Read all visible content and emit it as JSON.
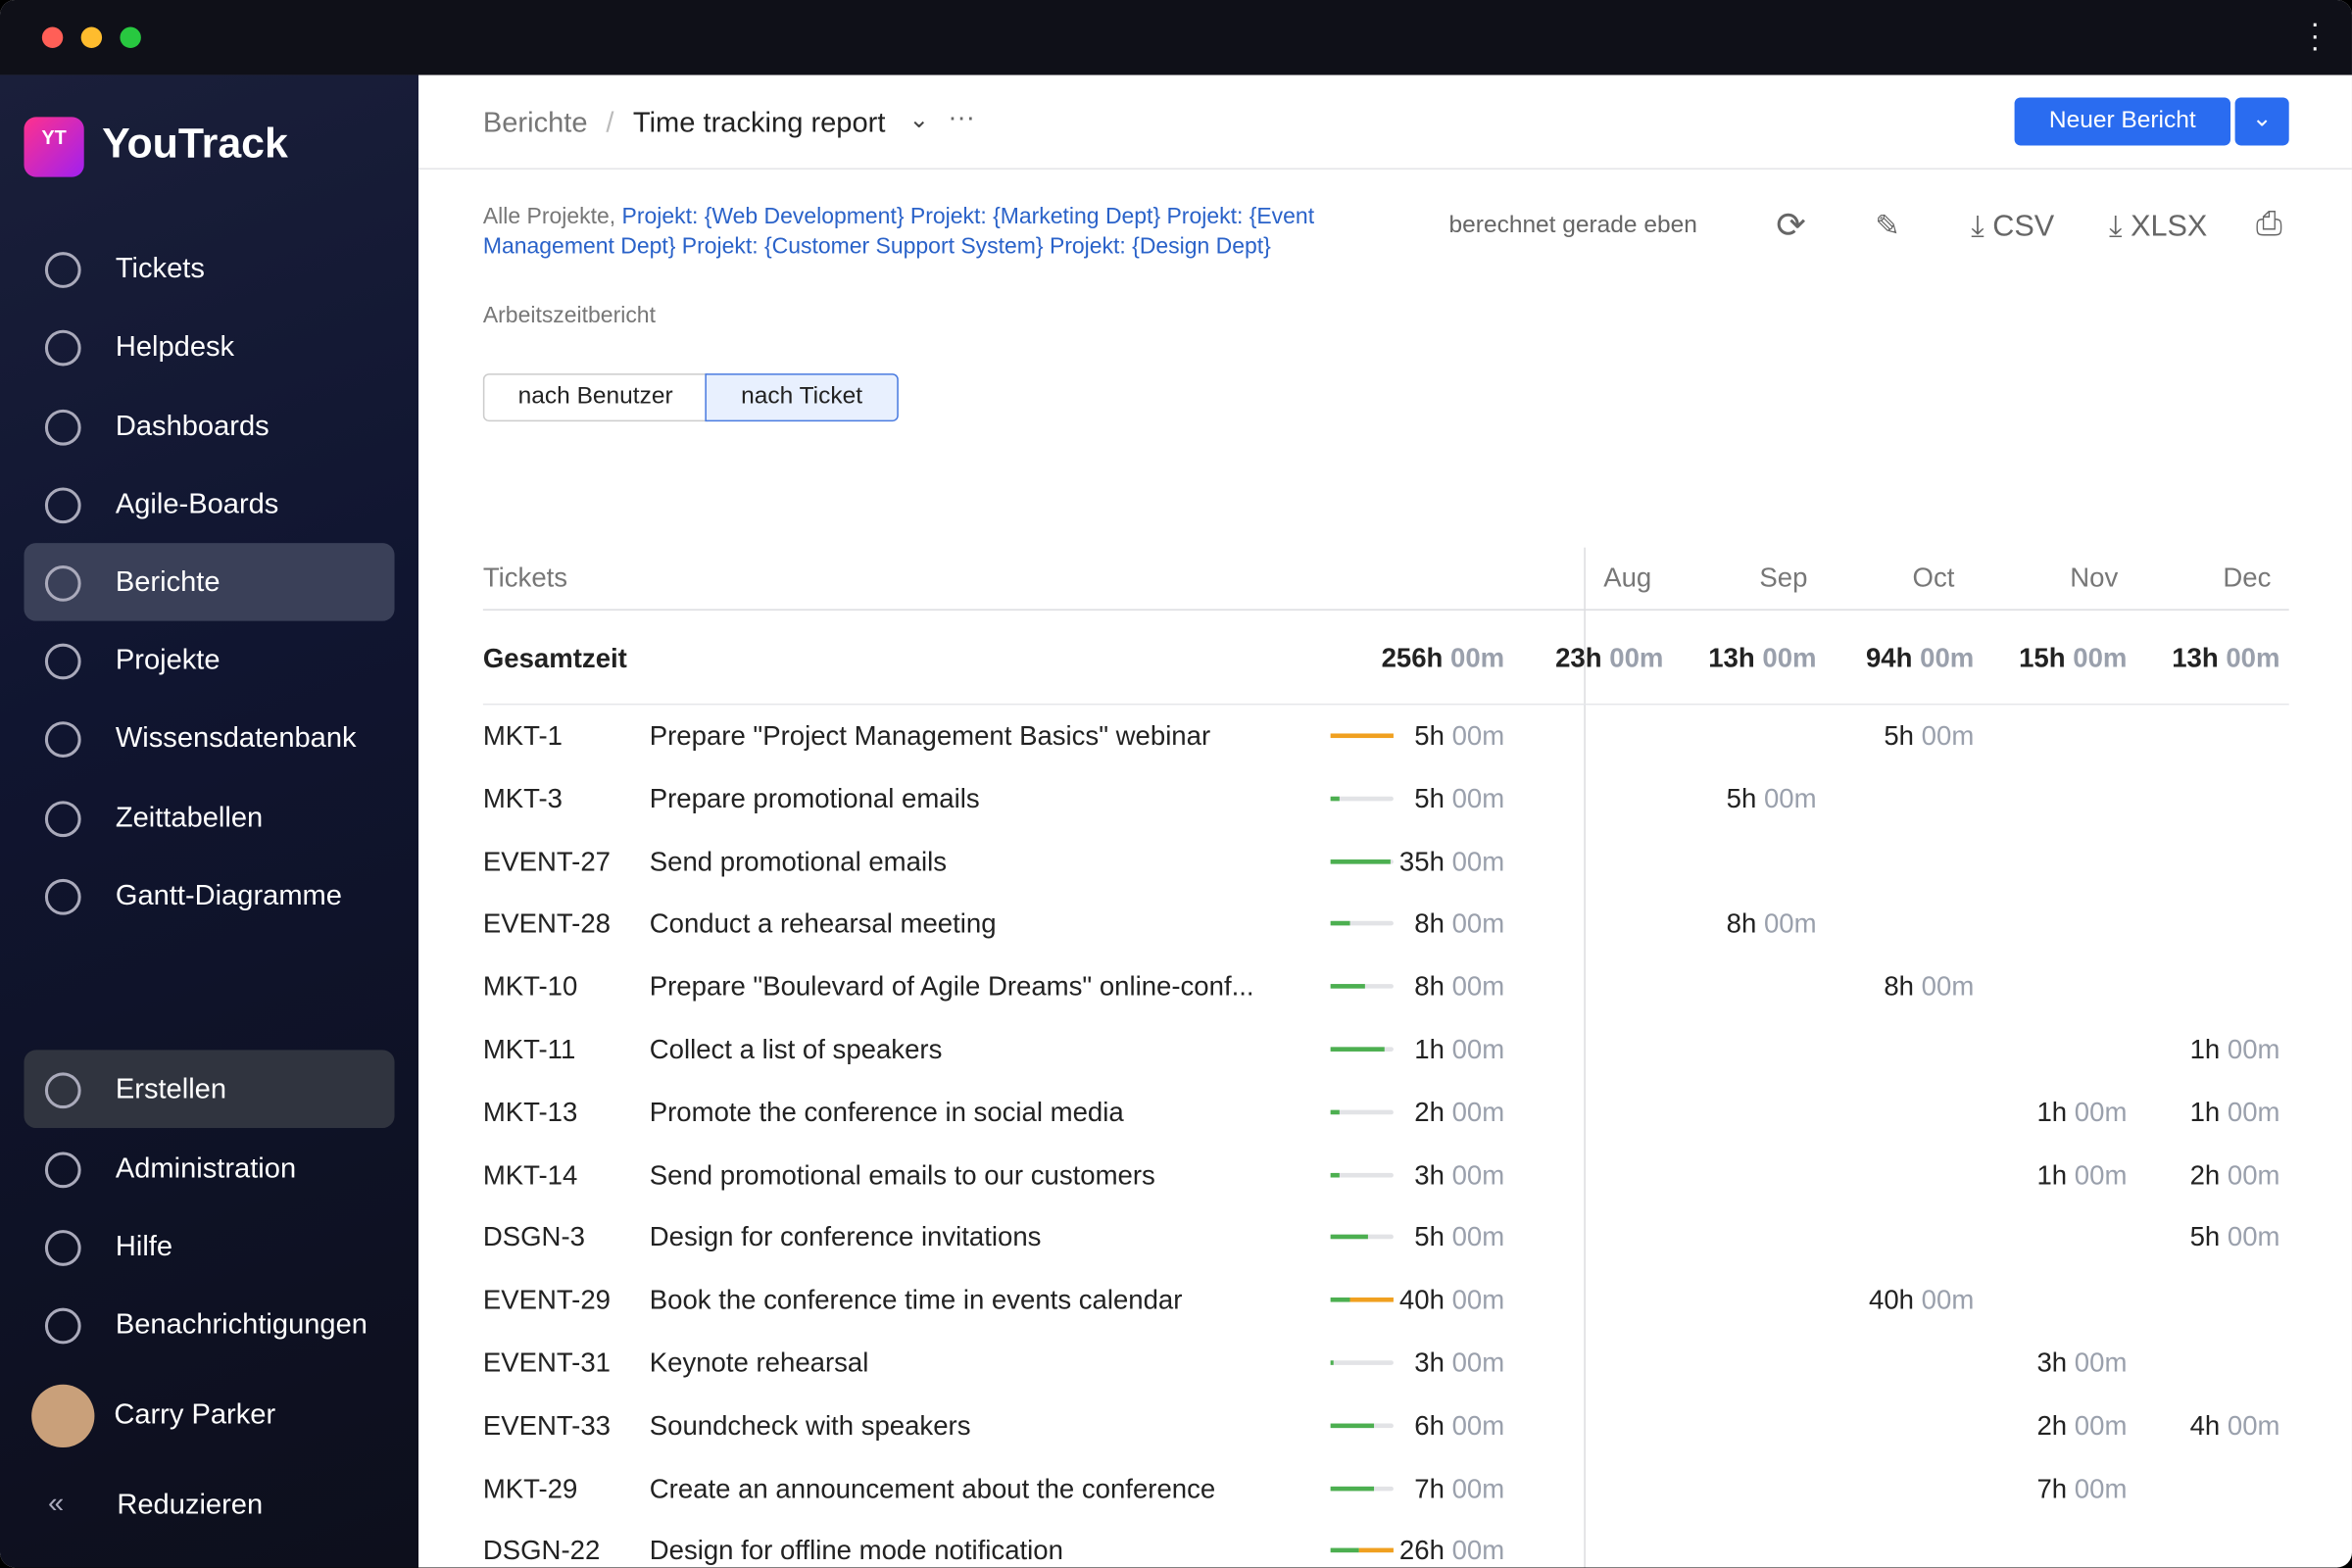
{
  "sidebar": {
    "logo": "YouTrack",
    "nav": [
      "Tickets",
      "Helpdesk",
      "Dashboards",
      "Agile-Boards",
      "Berichte",
      "Projekte",
      "Wissensdatenbank",
      "Zeittabellen",
      "Gantt-Diagramme"
    ],
    "bottom": [
      "Erstellen",
      "Administration",
      "Hilfe",
      "Benachrichtigungen"
    ],
    "user": "Carry Parker",
    "collapse": "Reduzieren"
  },
  "header": {
    "breadcrumb": "Berichte",
    "report": "Time tracking report",
    "new_report": "Neuer Bericht"
  },
  "filter": {
    "prefix": "Alle Projekte,",
    "projects": "Projekt: {Web Development} Projekt: {Marketing Dept} Projekt: {Event Management Dept} Projekt: {Customer Support System} Projekt: {Design Dept}",
    "subtitle": "Arbeitszeitbericht",
    "status": "berechnet gerade eben",
    "csv": "CSV",
    "xlsx": "XLSX"
  },
  "tabs": [
    "nach Benutzer",
    "nach Ticket"
  ],
  "table": {
    "column": "Tickets",
    "months": [
      "Aug",
      "Sep",
      "Oct",
      "Nov",
      "Dec"
    ],
    "total_label": "Gesamtzeit",
    "total": [
      "256h",
      "00m"
    ],
    "month_totals": [
      [
        "23h",
        "00m"
      ],
      [
        "13h",
        "00m"
      ],
      [
        "94h",
        "00m"
      ],
      [
        "15h",
        "00m"
      ],
      [
        "13h",
        "00m"
      ]
    ],
    "rows": [
      {
        "id": "MKT-1",
        "title": "Prepare \"Project Management Basics\" webinar",
        "bar": [
          0,
          1
        ],
        "total": [
          "5h",
          "00m"
        ],
        "months": [
          null,
          null,
          [
            "5h",
            "00m"
          ],
          null,
          null
        ]
      },
      {
        "id": "MKT-3",
        "title": "Prepare promotional emails",
        "bar": [
          0.15,
          0
        ],
        "total": [
          "5h",
          "00m"
        ],
        "months": [
          null,
          [
            "5h",
            "00m"
          ],
          null,
          null,
          null
        ]
      },
      {
        "id": "EVENT-27",
        "title": "Send promotional emails",
        "bar": [
          0.95,
          0
        ],
        "total": [
          "35h",
          "00m"
        ],
        "months": [
          null,
          null,
          null,
          null,
          null
        ]
      },
      {
        "id": "EVENT-28",
        "title": "Conduct a rehearsal meeting",
        "bar": [
          0.3,
          0
        ],
        "total": [
          "8h",
          "00m"
        ],
        "months": [
          null,
          [
            "8h",
            "00m"
          ],
          null,
          null,
          null
        ]
      },
      {
        "id": "MKT-10",
        "title": "Prepare \"Boulevard of Agile Dreams\" online-conf...",
        "bar": [
          0.55,
          0
        ],
        "total": [
          "8h",
          "00m"
        ],
        "months": [
          null,
          null,
          [
            "8h",
            "00m"
          ],
          null,
          null
        ]
      },
      {
        "id": "MKT-11",
        "title": "Collect a list of speakers",
        "bar": [
          0.85,
          0
        ],
        "total": [
          "1h",
          "00m"
        ],
        "months": [
          null,
          null,
          null,
          null,
          [
            "1h",
            "00m"
          ]
        ]
      },
      {
        "id": "MKT-13",
        "title": "Promote the conference in social media",
        "bar": [
          0.15,
          0
        ],
        "total": [
          "2h",
          "00m"
        ],
        "months": [
          null,
          null,
          null,
          [
            "1h",
            "00m"
          ],
          [
            "1h",
            "00m"
          ]
        ]
      },
      {
        "id": "MKT-14",
        "title": "Send promotional emails to our customers",
        "bar": [
          0.15,
          0
        ],
        "total": [
          "3h",
          "00m"
        ],
        "months": [
          null,
          null,
          null,
          [
            "1h",
            "00m"
          ],
          [
            "2h",
            "00m"
          ]
        ]
      },
      {
        "id": "DSGN-3",
        "title": "Design for conference invitations",
        "bar": [
          0.6,
          0
        ],
        "total": [
          "5h",
          "00m"
        ],
        "months": [
          null,
          null,
          null,
          null,
          [
            "5h",
            "00m"
          ]
        ]
      },
      {
        "id": "EVENT-29",
        "title": "Book the conference time in events calendar",
        "bar": [
          0.3,
          0.7
        ],
        "total": [
          "40h",
          "00m"
        ],
        "months": [
          null,
          null,
          [
            "40h",
            "00m"
          ],
          null,
          null
        ]
      },
      {
        "id": "EVENT-31",
        "title": "Keynote rehearsal",
        "bar": [
          0.05,
          0
        ],
        "total": [
          "3h",
          "00m"
        ],
        "months": [
          null,
          null,
          null,
          [
            "3h",
            "00m"
          ],
          null
        ]
      },
      {
        "id": "EVENT-33",
        "title": "Soundcheck with speakers",
        "bar": [
          0.7,
          0
        ],
        "total": [
          "6h",
          "00m"
        ],
        "months": [
          null,
          null,
          null,
          [
            "2h",
            "00m"
          ],
          [
            "4h",
            "00m"
          ]
        ]
      },
      {
        "id": "MKT-29",
        "title": "Create an announcement about the conference",
        "bar": [
          0.7,
          0
        ],
        "total": [
          "7h",
          "00m"
        ],
        "months": [
          null,
          null,
          null,
          [
            "7h",
            "00m"
          ],
          null
        ]
      },
      {
        "id": "DSGN-22",
        "title": "Design for offline mode notification",
        "bar": [
          0.45,
          0.55
        ],
        "total": [
          "26h",
          "00m"
        ],
        "months": [
          null,
          null,
          null,
          null,
          null
        ]
      }
    ]
  }
}
